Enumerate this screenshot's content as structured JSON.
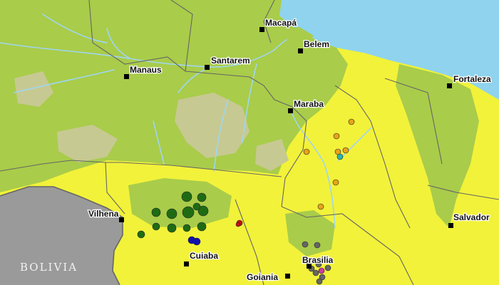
{
  "map": {
    "colors": {
      "ocean": "#8fd3ee",
      "neighbor": "#9a9a9a",
      "forest": "#a9cc4a",
      "savanna": "#f2f23a",
      "dry": "#c7c992",
      "river": "#9fd6f2",
      "border": "#666666"
    },
    "country_label": "BOLIVIA",
    "cities": [
      {
        "name": "Macapá"
      },
      {
        "name": "Belem"
      },
      {
        "name": "Manaus"
      },
      {
        "name": "Santarem"
      },
      {
        "name": "Fortaleza"
      },
      {
        "name": "Maraba"
      },
      {
        "name": "Vilhena"
      },
      {
        "name": "Salvador"
      },
      {
        "name": "Cuiaba"
      },
      {
        "name": "Brasilia"
      },
      {
        "name": "Goiania"
      }
    ],
    "marker_groups": [
      {
        "color": "#1f6b14",
        "count": 12
      },
      {
        "color": "#1010b0",
        "count": 2
      },
      {
        "color": "#cc1010",
        "count": 2
      },
      {
        "color": "#e8a41a",
        "count": 7
      },
      {
        "color": "#2ab5ad",
        "count": 1
      },
      {
        "color": "#666666",
        "count": 8
      },
      {
        "color": "#cc3aa6",
        "count": 1
      }
    ]
  }
}
